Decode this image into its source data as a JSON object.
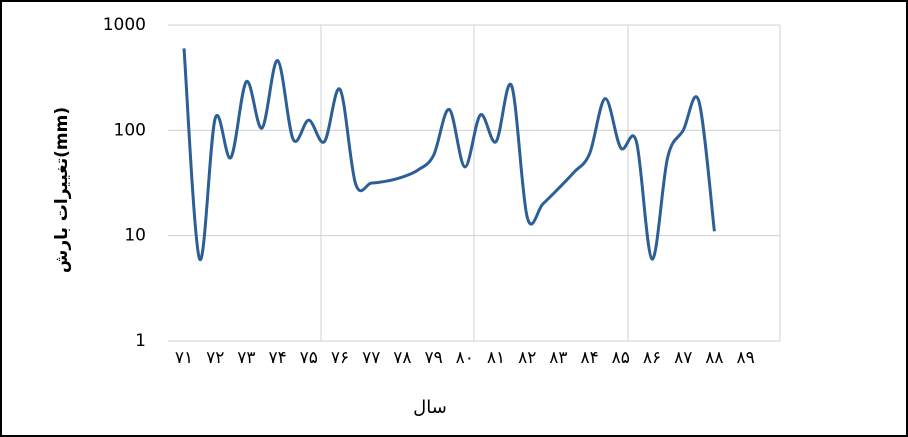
{
  "chart_data": {
    "type": "line",
    "log_y": true,
    "grid": true,
    "y_label": "تغییرات بارش(mm)",
    "x_label": "سال",
    "categories": [
      "٧١",
      null,
      "٧٢",
      null,
      "٧٣",
      null,
      "٧۴",
      null,
      "٧۵",
      null,
      "٧۶",
      null,
      "٧٧",
      null,
      "٧٨",
      null,
      "٧٩",
      null,
      "٨٠",
      null,
      "٨١",
      null,
      "٨٢",
      null,
      "٨٣",
      null,
      "٨۴",
      null,
      "٨۵",
      null,
      "٨۶",
      null,
      "٨٧",
      null,
      "٨٨",
      null,
      "٨٩"
    ],
    "series": [
      {
        "name": "بارش",
        "color": "#2d5f97",
        "values": [
          600,
          6,
          130,
          55,
          290,
          105,
          460,
          82,
          125,
          78,
          245,
          31,
          31.5,
          33,
          36,
          42,
          58,
          158,
          45,
          140,
          78,
          265,
          15,
          20,
          28,
          40,
          60,
          200,
          68,
          78,
          6,
          55,
          100,
          190,
          11,
          null,
          null
        ]
      }
    ],
    "ylim": [
      1,
      1000
    ],
    "yticks": [
      1,
      10,
      100,
      1000
    ]
  }
}
